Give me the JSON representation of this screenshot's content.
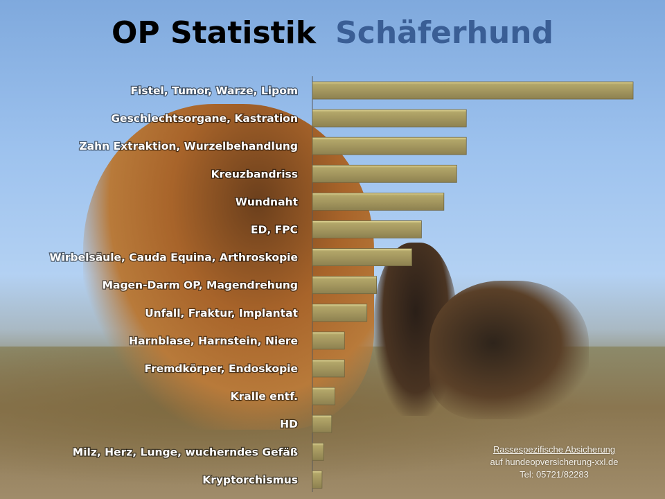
{
  "title": {
    "part1": "OP Statistik",
    "part2": "Schäferhund"
  },
  "colors": {
    "bar": "#a4975f",
    "bar_highlight": "#d8cc8a",
    "title_accent": "#3a5e95"
  },
  "chart_data": {
    "type": "bar",
    "orientation": "horizontal",
    "title": "OP Statistik Schäferhund",
    "value_unit": "relative length, % of longest bar (no axis scale printed)",
    "categories": [
      "Fistel, Tumor, Warze, Lipom",
      "Geschlechtsorgane, Kastration",
      "Zahn Extraktion, Wurzelbehandlung",
      "Kreuzbandriss",
      "Wundnaht",
      "ED, FPC",
      "Wirbelsäule, Cauda Equina, Arthroskopie",
      "Magen-Darm OP, Magendrehung",
      "Unfall, Fraktur, Implantat",
      "Harnblase, Harnstein, Niere",
      "Fremdkörper, Endoskopie",
      "Kralle entf.",
      "HD",
      "Milz, Herz, Lunge, wucherndes Gefäß",
      "Kryptorchismus"
    ],
    "values": [
      100,
      48,
      48,
      45,
      41,
      34,
      31,
      20,
      17,
      10,
      10,
      7,
      6,
      3.5,
      3
    ],
    "xlim": [
      0,
      100
    ],
    "grid": false,
    "legend": "none"
  },
  "footer": {
    "line1": "Rassespezifische  Absicherung",
    "line2": "auf hundeopversicherung-xxl.de",
    "line3": "Tel: 05721/82283"
  }
}
